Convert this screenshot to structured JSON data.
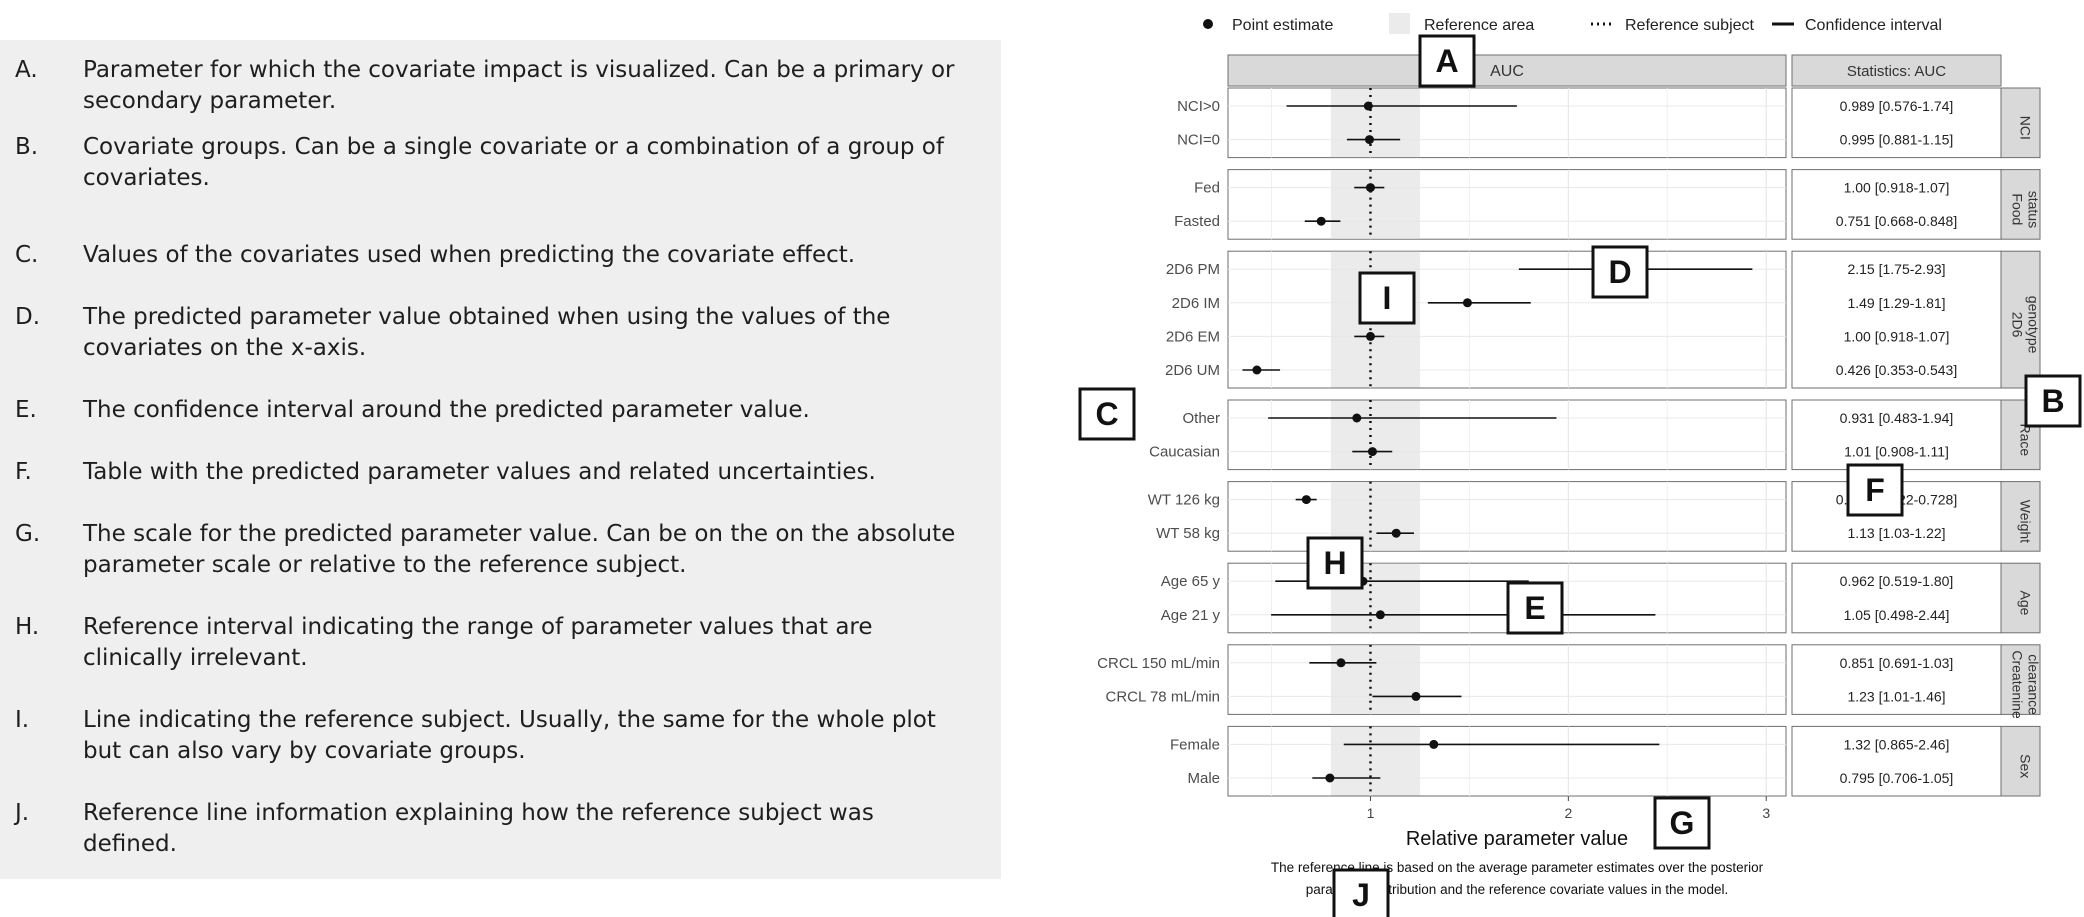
{
  "description_items": [
    {
      "letter": "A.",
      "text": "Parameter for which the covariate impact is visualized. Can be a primary or secondary parameter."
    },
    {
      "letter": "B.",
      "text": "Covariate groups. Can be a single covariate or a combination of a group of covariates."
    },
    {
      "letter": "C.",
      "text": "Values of the covariates used when predicting the covariate effect."
    },
    {
      "letter": "D.",
      "text": "The predicted parameter value obtained when using the values of the covariates on the x-axis."
    },
    {
      "letter": "E.",
      "text": "The confidence interval around the predicted parameter value."
    },
    {
      "letter": "F.",
      "text": "Table with the  predicted parameter values and related uncertainties."
    },
    {
      "letter": "G.",
      "text": "The scale for the predicted parameter value. Can be on the on the absolute parameter scale or relative to the reference subject."
    },
    {
      "letter": "H.",
      "text": "Reference interval indicating the range of parameter values that are clinically irrelevant."
    },
    {
      "letter": "I.",
      "text": "Line indicating the reference subject. Usually, the same for the whole plot but can also vary by covariate groups."
    },
    {
      "letter": "J.",
      "text": "Reference line information explaining how the reference subject was defined."
    }
  ],
  "legend": {
    "point": "Point estimate",
    "area": "Reference area",
    "ref": "Reference subject",
    "ci": "Confidence interval"
  },
  "callouts": {
    "A": "A",
    "B": "B",
    "C": "C",
    "D": "D",
    "E": "E",
    "F": "F",
    "G": "G",
    "H": "H",
    "I": "I",
    "J": "J"
  },
  "chart_data": {
    "type": "forest",
    "panel_title": "AUC",
    "table_title": "Statistics: AUC",
    "xlabel": "Relative parameter value",
    "x_ticks": [
      1,
      2,
      3
    ],
    "xlim": [
      0.28,
      3.1
    ],
    "reference_value": 1.0,
    "reference_area": [
      0.8,
      1.25
    ],
    "footnote": [
      "The reference line is based on the average parameter estimates over the posterior",
      "parameter distribution and the reference covariate values in the model."
    ],
    "groups": [
      {
        "name": "NCI",
        "rows": [
          {
            "label": "NCI>0",
            "est": 0.989,
            "lo": 0.576,
            "hi": 1.74,
            "stat": "0.989 [0.576-1.74]"
          },
          {
            "label": "NCI=0",
            "est": 0.995,
            "lo": 0.881,
            "hi": 1.15,
            "stat": "0.995 [0.881-1.15]"
          }
        ]
      },
      {
        "name": "Food status",
        "rows": [
          {
            "label": "Fed",
            "est": 1.0,
            "lo": 0.918,
            "hi": 1.07,
            "stat": "1.00 [0.918-1.07]"
          },
          {
            "label": "Fasted",
            "est": 0.751,
            "lo": 0.668,
            "hi": 0.848,
            "stat": "0.751 [0.668-0.848]"
          }
        ]
      },
      {
        "name": "2D6 genotype",
        "rows": [
          {
            "label": "2D6 PM",
            "est": 2.15,
            "lo": 1.75,
            "hi": 2.93,
            "stat": "2.15 [1.75-2.93]"
          },
          {
            "label": "2D6 IM",
            "est": 1.49,
            "lo": 1.29,
            "hi": 1.81,
            "stat": "1.49 [1.29-1.81]"
          },
          {
            "label": "2D6 EM",
            "est": 1.0,
            "lo": 0.918,
            "hi": 1.07,
            "stat": "1.00 [0.918-1.07]"
          },
          {
            "label": "2D6 UM",
            "est": 0.426,
            "lo": 0.353,
            "hi": 0.543,
            "stat": "0.426 [0.353-0.543]"
          }
        ]
      },
      {
        "name": "Race",
        "rows": [
          {
            "label": "Other",
            "est": 0.931,
            "lo": 0.483,
            "hi": 1.94,
            "stat": "0.931 [0.483-1.94]"
          },
          {
            "label": "Caucasian",
            "est": 1.01,
            "lo": 0.908,
            "hi": 1.11,
            "stat": "1.01 [0.908-1.11]"
          }
        ]
      },
      {
        "name": "Weight",
        "rows": [
          {
            "label": "WT 126 kg",
            "est": 0.676,
            "lo": 0.622,
            "hi": 0.728,
            "stat": "0.676 [0.622-0.728]"
          },
          {
            "label": "WT 58 kg",
            "est": 1.13,
            "lo": 1.03,
            "hi": 1.22,
            "stat": "1.13 [1.03-1.22]"
          }
        ]
      },
      {
        "name": "Age",
        "rows": [
          {
            "label": "Age 65 y",
            "est": 0.962,
            "lo": 0.519,
            "hi": 1.8,
            "stat": "0.962 [0.519-1.80]"
          },
          {
            "label": "Age 21 y",
            "est": 1.05,
            "lo": 0.498,
            "hi": 2.44,
            "stat": "1.05 [0.498-2.44]"
          }
        ]
      },
      {
        "name": "Createnine clearance",
        "rows": [
          {
            "label": "CRCL 150 mL/min",
            "est": 0.851,
            "lo": 0.691,
            "hi": 1.03,
            "stat": "0.851 [0.691-1.03]"
          },
          {
            "label": "CRCL 78 mL/min",
            "est": 1.23,
            "lo": 1.01,
            "hi": 1.46,
            "stat": "1.23 [1.01-1.46]"
          }
        ]
      },
      {
        "name": "Sex",
        "rows": [
          {
            "label": "Female",
            "est": 1.32,
            "lo": 0.865,
            "hi": 2.46,
            "stat": "1.32 [0.865-2.46]"
          },
          {
            "label": "Male",
            "est": 0.795,
            "lo": 0.706,
            "hi": 1.05,
            "stat": "0.795 [0.706-1.05]"
          }
        ]
      }
    ]
  }
}
